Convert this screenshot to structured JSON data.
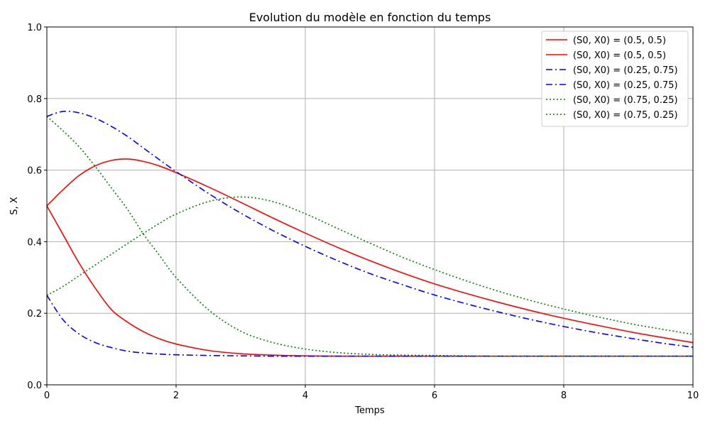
{
  "chart_data": {
    "type": "line",
    "title": "Evolution du modèle en fonction du temps",
    "xlabel": "Temps",
    "ylabel": "S, X",
    "xlim": [
      0,
      10
    ],
    "ylim": [
      0,
      1.0
    ],
    "xticks": [
      "0",
      "2",
      "4",
      "6",
      "8",
      "10"
    ],
    "yticks": [
      "0.0",
      "0.2",
      "0.4",
      "0.6",
      "0.8",
      "1.0"
    ],
    "grid": true,
    "legend_position": "top-right",
    "x": [
      0,
      0.25,
      0.5,
      0.75,
      1,
      1.25,
      1.5,
      1.75,
      2,
      2.5,
      3,
      3.5,
      4,
      4.5,
      5,
      5.5,
      6,
      6.5,
      7,
      7.5,
      8,
      8.5,
      9,
      9.5,
      10
    ],
    "series": [
      {
        "name": "(S0, X0) = (0.5, 0.5)",
        "color": "#ff0000",
        "style": "solid",
        "values": [
          0.5,
          0.545,
          0.585,
          0.612,
          0.627,
          0.631,
          0.624,
          0.611,
          0.593,
          0.553,
          0.51,
          0.466,
          0.424,
          0.384,
          0.347,
          0.313,
          0.282,
          0.255,
          0.23,
          0.207,
          0.186,
          0.167,
          0.149,
          0.133,
          0.118
        ]
      },
      {
        "name": "(S0, X0) = (0.5, 0.5)",
        "color": "#ff0000",
        "style": "solid",
        "values": [
          0.5,
          0.42,
          0.34,
          0.27,
          0.21,
          0.175,
          0.148,
          0.128,
          0.114,
          0.096,
          0.087,
          0.083,
          0.081,
          0.08,
          0.08,
          0.08,
          0.08,
          0.08,
          0.08,
          0.08,
          0.08,
          0.08,
          0.08,
          0.08,
          0.08
        ]
      },
      {
        "name": "(S0, X0) = (0.25, 0.75)",
        "color": "#0000ff",
        "style": "dashdot",
        "values": [
          0.75,
          0.764,
          0.76,
          0.745,
          0.722,
          0.694,
          0.661,
          0.628,
          0.596,
          0.535,
          0.48,
          0.431,
          0.387,
          0.347,
          0.311,
          0.28,
          0.251,
          0.226,
          0.203,
          0.182,
          0.163,
          0.146,
          0.131,
          0.117,
          0.105
        ]
      },
      {
        "name": "(S0, X0) = (0.25, 0.75)",
        "color": "#0000ff",
        "style": "dashdot",
        "values": [
          0.25,
          0.182,
          0.142,
          0.118,
          0.104,
          0.094,
          0.089,
          0.086,
          0.084,
          0.082,
          0.081,
          0.08,
          0.08,
          0.08,
          0.08,
          0.08,
          0.08,
          0.08,
          0.08,
          0.08,
          0.08,
          0.08,
          0.08,
          0.08,
          0.08
        ]
      },
      {
        "name": "(S0, X0) = (0.75, 0.25)",
        "color": "#008000",
        "style": "dotted",
        "values": [
          0.25,
          0.275,
          0.305,
          0.335,
          0.365,
          0.395,
          0.424,
          0.452,
          0.477,
          0.512,
          0.525,
          0.512,
          0.478,
          0.437,
          0.396,
          0.357,
          0.322,
          0.29,
          0.261,
          0.235,
          0.212,
          0.191,
          0.172,
          0.156,
          0.141
        ]
      },
      {
        "name": "(S0, X0) = (0.75, 0.25)",
        "color": "#008000",
        "style": "dotted",
        "values": [
          0.75,
          0.71,
          0.665,
          0.61,
          0.55,
          0.49,
          0.42,
          0.36,
          0.3,
          0.21,
          0.15,
          0.118,
          0.1,
          0.09,
          0.085,
          0.083,
          0.082,
          0.081,
          0.08,
          0.08,
          0.08,
          0.08,
          0.08,
          0.08,
          0.08
        ]
      }
    ]
  }
}
